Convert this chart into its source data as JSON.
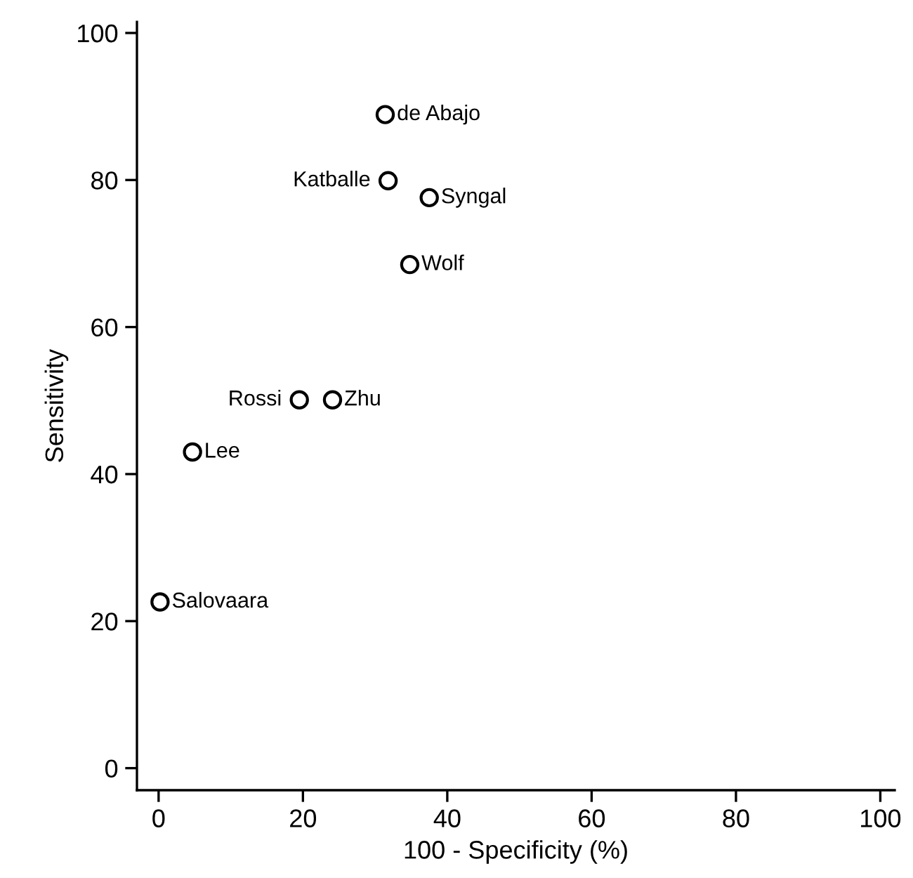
{
  "chart_data": {
    "type": "scatter",
    "xlabel": "100 - Specificity (%)",
    "ylabel": "Sensitivity",
    "x": [
      31.4,
      31.8,
      37.5,
      34.8,
      19.5,
      24.1,
      4.7,
      0.2
    ],
    "values": [
      88.9,
      79.9,
      77.6,
      68.5,
      50.1,
      50.1,
      43.0,
      22.6
    ],
    "color": "#000000",
    "marker": "circle",
    "grid": false,
    "legend": false,
    "xlim": [
      -3,
      102
    ],
    "ylim": [
      -3,
      101.5
    ],
    "xticks": [
      0,
      20,
      40,
      60,
      80,
      100
    ],
    "yticks": [
      0,
      20,
      40,
      60,
      80,
      100
    ],
    "annotations": [
      {
        "text": "de Abajo",
        "x": 31.4,
        "y": 88.9
      },
      {
        "text": "Katballe",
        "x": 31.8,
        "y": 79.9
      },
      {
        "text": "Syngal",
        "x": 37.5,
        "y": 77.6
      },
      {
        "text": "Wolf",
        "x": 34.8,
        "y": 68.5
      },
      {
        "text": "Rossi",
        "x": 19.5,
        "y": 50.1
      },
      {
        "text": "Zhu",
        "x": 24.1,
        "y": 50.1
      },
      {
        "text": "Lee",
        "x": 4.7,
        "y": 43.0
      },
      {
        "text": "Salovaara",
        "x": 0.2,
        "y": 22.6
      }
    ]
  }
}
